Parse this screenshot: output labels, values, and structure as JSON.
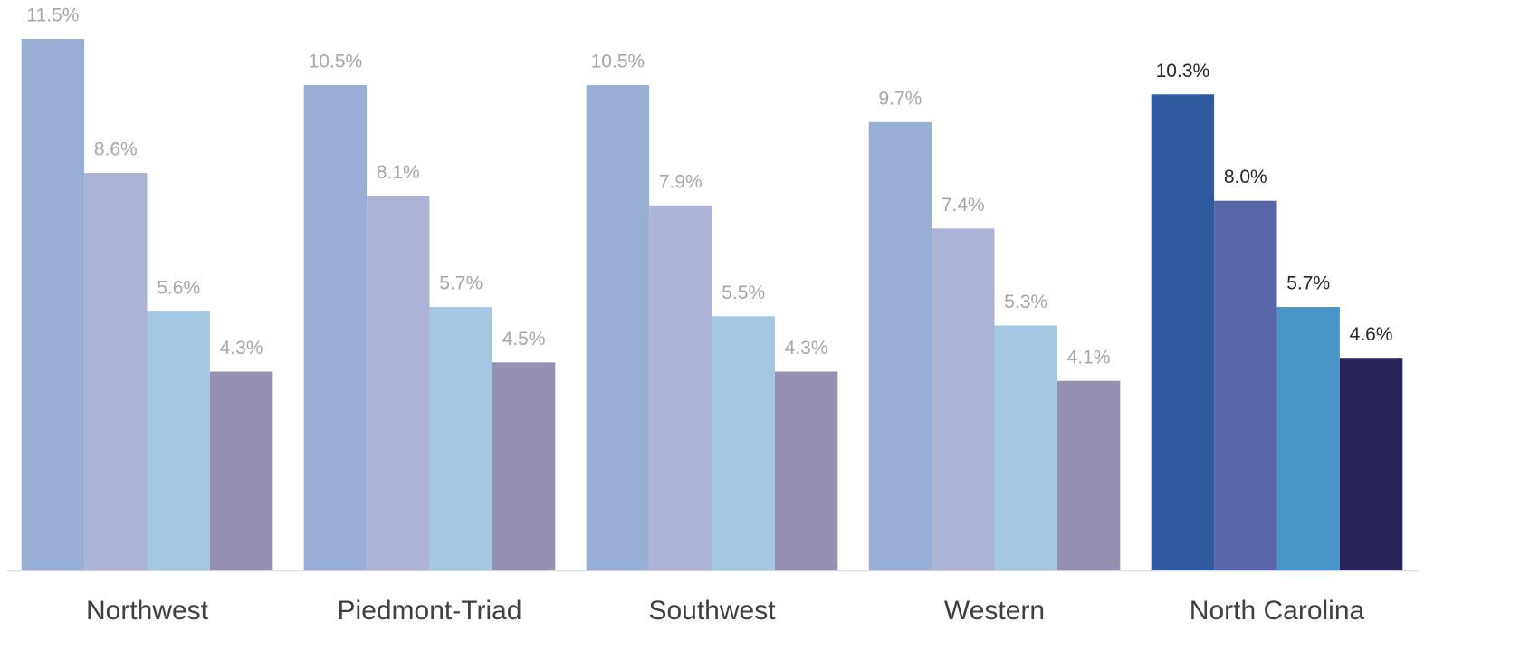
{
  "chart_data": {
    "type": "bar",
    "categories": [
      "Northwest",
      "Piedmont-Triad",
      "Southwest",
      "Western",
      "North Carolina"
    ],
    "series": [
      {
        "values": [
          11.5,
          10.5,
          10.5,
          9.7,
          10.3
        ],
        "value_labels": [
          "11.5%",
          "10.5%",
          "10.5%",
          "9.7%",
          "10.3%"
        ],
        "colors": [
          "#98aed4",
          "#98aed4",
          "#98aed4",
          "#98aed4",
          "#2e5aa0"
        ]
      },
      {
        "values": [
          8.6,
          8.1,
          7.9,
          7.4,
          8.0
        ],
        "value_labels": [
          "8.6%",
          "8.1%",
          "7.9%",
          "7.4%",
          "8.0%"
        ],
        "colors": [
          "#adb3d4",
          "#adb3d4",
          "#adb3d4",
          "#adb3d4",
          "#5866a8"
        ]
      },
      {
        "values": [
          5.6,
          5.7,
          5.5,
          5.3,
          5.7
        ],
        "value_labels": [
          "5.6%",
          "5.7%",
          "5.5%",
          "5.3%",
          "5.7%"
        ],
        "colors": [
          "#a4c8e2",
          "#a4c8e2",
          "#a4c8e2",
          "#a4c8e2",
          "#4795c9"
        ]
      },
      {
        "values": [
          4.3,
          4.5,
          4.3,
          4.1,
          4.6
        ],
        "value_labels": [
          "4.3%",
          "4.5%",
          "4.3%",
          "4.1%",
          "4.6%"
        ],
        "colors": [
          "#9591b0",
          "#9591b0",
          "#9591b0",
          "#9591b0",
          "#29235c"
        ]
      }
    ],
    "label_colors": [
      "#a6a6a6",
      "#a6a6a6",
      "#a6a6a6",
      "#a6a6a6",
      "#262626"
    ],
    "ylim": [
      0,
      12
    ]
  }
}
